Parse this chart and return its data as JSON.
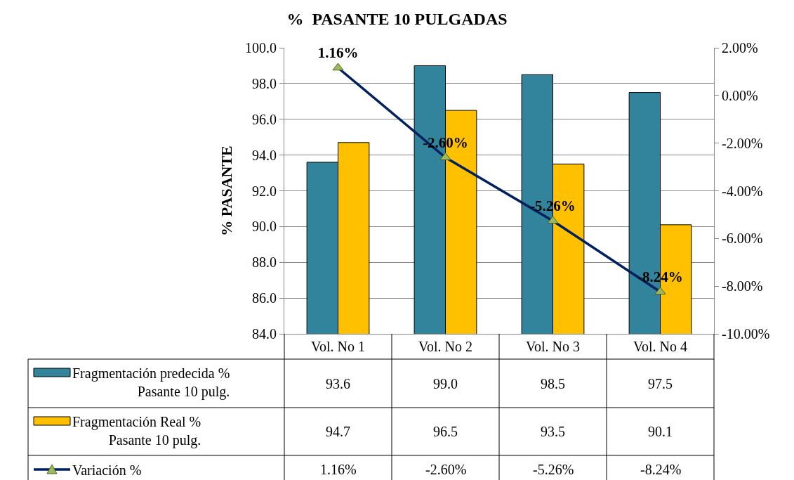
{
  "chart_data": {
    "type": "bar",
    "title": "%  PASANTE 10 PULGADAS",
    "ylabel": "% PASANTE",
    "categories": [
      "Vol. No 1",
      "Vol. No 2",
      "Vol. No 3",
      "Vol. No 4"
    ],
    "series": [
      {
        "name": "Fragmentación predecida % Pasante 10 pulg.",
        "color": "#31849b",
        "values": [
          93.6,
          99.0,
          98.5,
          97.5
        ],
        "value_labels": [
          "93.6",
          "99.0",
          "98.5",
          "97.5"
        ]
      },
      {
        "name": "Fragmentación Real % Pasante 10 pulg.",
        "color": "#ffc000",
        "values": [
          94.7,
          96.5,
          93.5,
          90.1
        ],
        "value_labels": [
          "94.7",
          "96.5",
          "93.5",
          "90.1"
        ]
      },
      {
        "name": "Variación %",
        "type": "line",
        "axis": "y2",
        "color": "#002060",
        "marker": "triangle",
        "values": [
          1.16,
          -2.6,
          -5.26,
          -8.24
        ],
        "value_labels": [
          "1.16%",
          "-2.60%",
          "-5.26%",
          "-8.24%"
        ]
      }
    ],
    "ylim": [
      84,
      100
    ],
    "yticks": [
      {
        "value": 84,
        "label": "84.0"
      },
      {
        "value": 86,
        "label": "86.0"
      },
      {
        "value": 88,
        "label": "88.0"
      },
      {
        "value": 90,
        "label": "90.0"
      },
      {
        "value": 92,
        "label": "92.0"
      },
      {
        "value": 94,
        "label": "94.0"
      },
      {
        "value": 96,
        "label": "96.0"
      },
      {
        "value": 98,
        "label": "98.0"
      },
      {
        "value": 100,
        "label": "100.0"
      }
    ],
    "y2lim": [
      -10,
      2
    ],
    "y2ticks": [
      {
        "value": -10,
        "label": "-10.00%"
      },
      {
        "value": -8,
        "label": "-8.00%"
      },
      {
        "value": -6,
        "label": "-6.00%"
      },
      {
        "value": -4,
        "label": "-4.00%"
      },
      {
        "value": -2,
        "label": "-2.00%"
      },
      {
        "value": 0,
        "label": "0.00%"
      },
      {
        "value": 2,
        "label": "2.00%"
      }
    ],
    "grid": "y",
    "legend": "bottom"
  }
}
